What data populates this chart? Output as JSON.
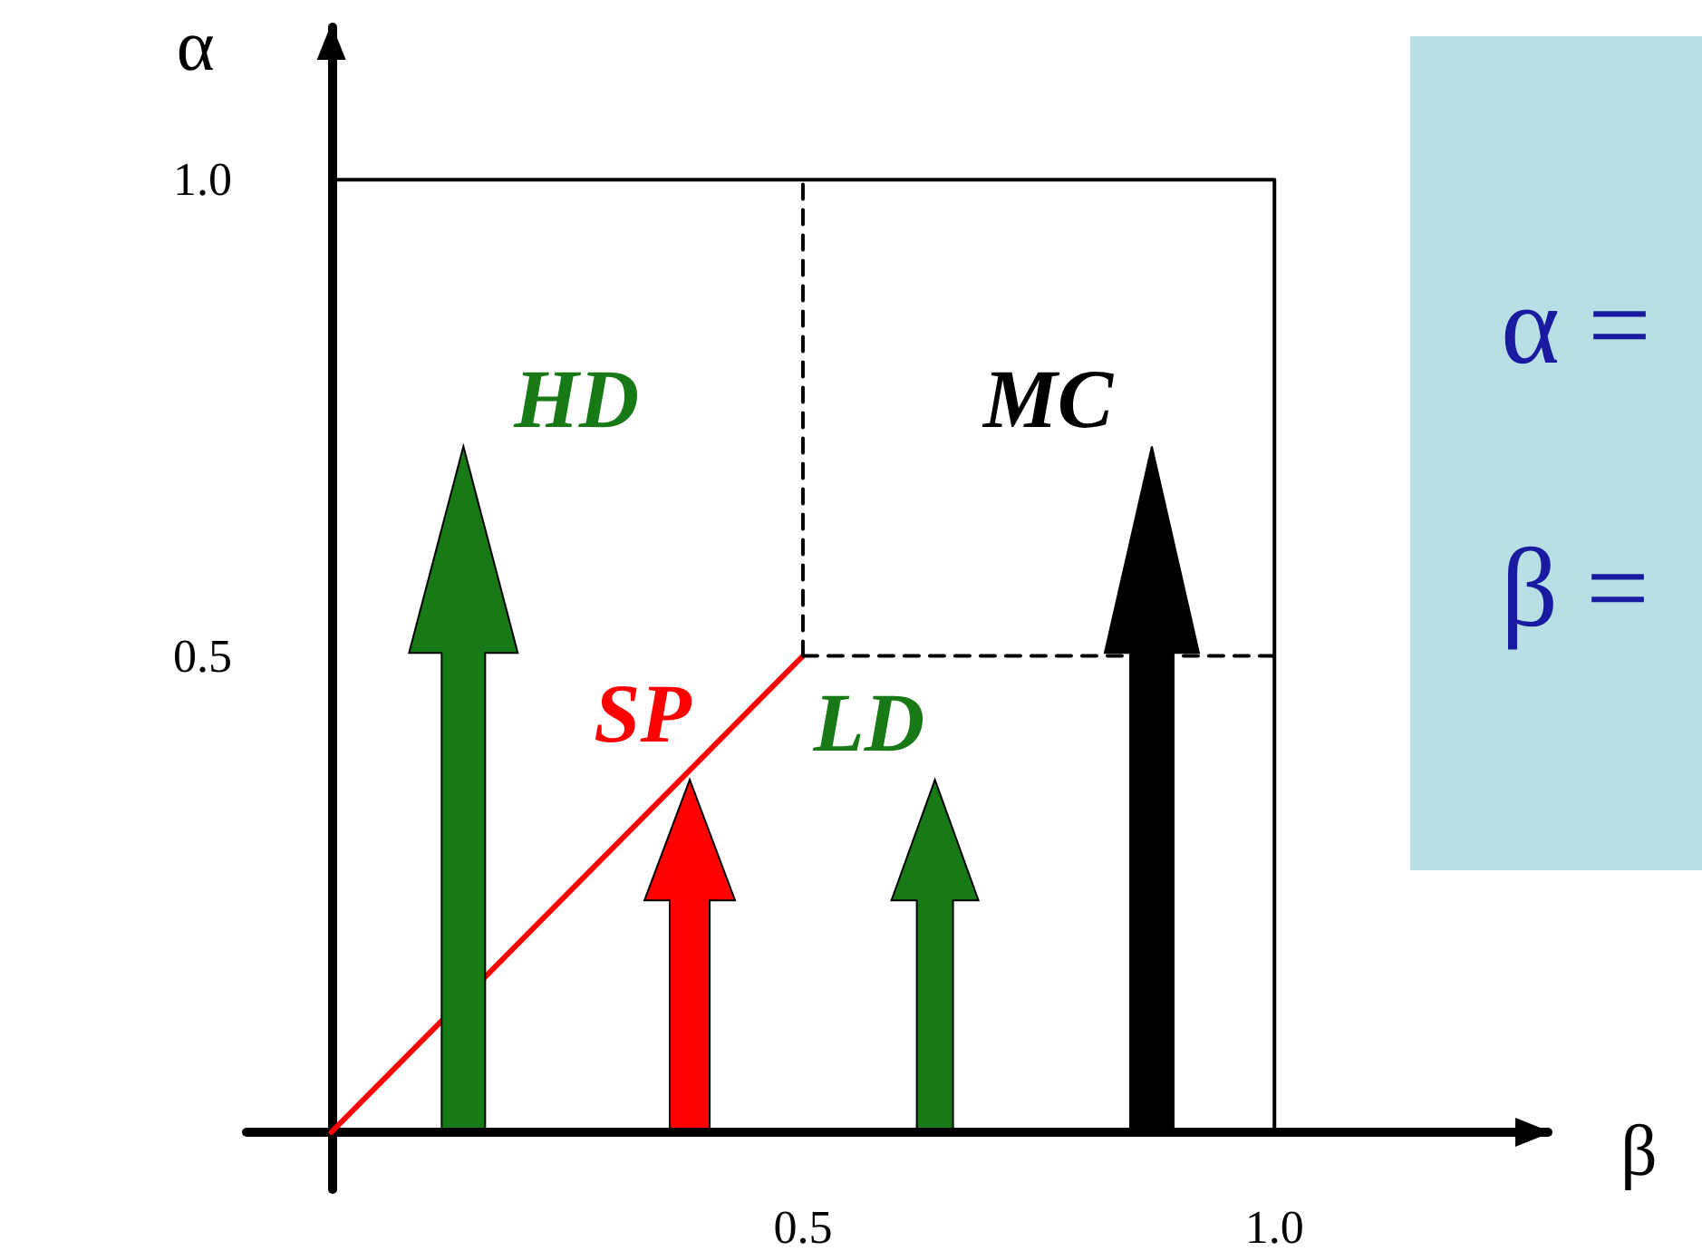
{
  "chart_data": {
    "type": "line",
    "xlabel": "β",
    "ylabel": "α",
    "xlim": [
      -0.09,
      1.29
    ],
    "ylim": [
      -0.06,
      1.16
    ],
    "xticks": [
      {
        "value": 0.5,
        "label": "0.5"
      },
      {
        "value": 1,
        "label": "1.0"
      }
    ],
    "yticks": [
      {
        "value": 0.5,
        "label": "0.5"
      },
      {
        "value": 1,
        "label": "1.0"
      }
    ],
    "grid": false,
    "marker": "none",
    "series": [
      {
        "color": "#ff0000",
        "x": [
          0,
          0.5
        ],
        "values": [
          0,
          0.5
        ],
        "line_style": "solid"
      },
      {
        "color": "#000000",
        "x": [
          0.5,
          0.5
        ],
        "values": [
          0.5,
          1
        ],
        "line_style": "dashed"
      },
      {
        "color": "#000000",
        "x": [
          0.5,
          1
        ],
        "values": [
          0.5,
          0.5
        ],
        "line_style": "dashed"
      },
      {
        "color": "#000000",
        "x": [
          0,
          1,
          1
        ],
        "values": [
          1,
          1,
          0
        ],
        "line_style": "solid"
      }
    ],
    "annotations": [
      "HD",
      "SP",
      "LD",
      "MC",
      "α =",
      "β ="
    ]
  }
}
